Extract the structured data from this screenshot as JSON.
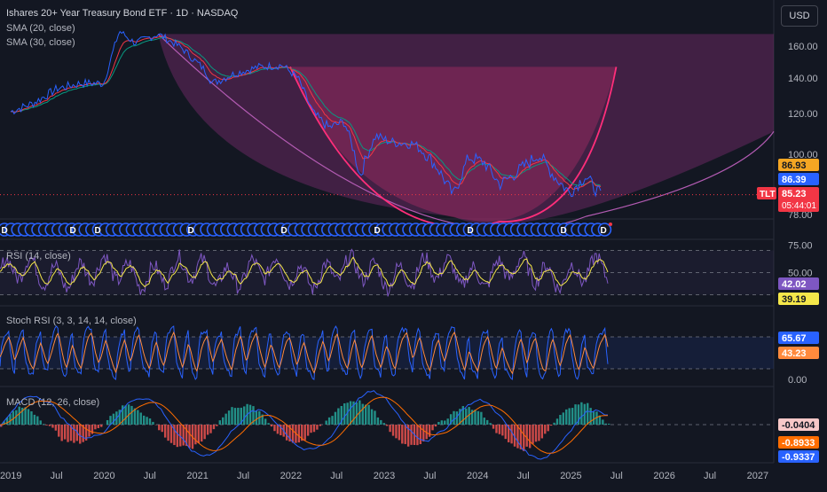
{
  "header": {
    "title": "Ishares 20+ Year Treasury Bond ETF · 1D · NASDAQ",
    "sma20": "SMA (20, close)",
    "sma30": "SMA (30, close)",
    "currency": "USD"
  },
  "colors": {
    "background": "#131722",
    "price": "#2962ff",
    "sma20": "#f23645",
    "sma30": "#089981",
    "cup_fill": "#7b2d6e",
    "handle_fill": "#9c2a5f",
    "handle_arc": "#ff2e7a",
    "rsi": "#7e57c2",
    "rsi_ma": "#f5e74a",
    "stoch_k": "#2962ff",
    "stoch_d": "#ff8a3d",
    "macd_line": "#2962ff",
    "macd_signal": "#ff6d00",
    "hist_pos": "#26a69a",
    "hist_neg": "#ef5350"
  },
  "chart_data": [
    {
      "type": "line",
      "panel": "price",
      "series": [
        {
          "name": "TLT",
          "x": [
            "2019-01",
            "2019-04",
            "2019-07",
            "2019-10",
            "2020-01",
            "2020-03",
            "2020-05",
            "2020-08",
            "2020-11",
            "2021-02",
            "2021-03",
            "2021-06",
            "2021-09",
            "2021-12",
            "2022-02",
            "2022-04",
            "2022-06",
            "2022-08",
            "2022-10",
            "2022-12",
            "2023-02",
            "2023-05",
            "2023-08",
            "2023-10",
            "2023-12",
            "2024-02",
            "2024-04",
            "2024-06",
            "2024-09",
            "2024-11",
            "2025-01",
            "2025-03",
            "2025-05"
          ],
          "values": [
            121,
            126,
            134,
            137,
            137,
            170,
            162,
            168,
            159,
            145,
            137,
            143,
            147,
            148,
            140,
            120,
            113,
            116,
            92,
            109,
            106,
            105,
            95,
            85,
            99,
            97,
            89,
            93,
            100,
            92,
            86,
            92,
            85
          ]
        }
      ],
      "value_tags": [
        {
          "label": "86.93",
          "value": 86.93,
          "color": "#f5a623"
        },
        {
          "label": "86.39",
          "value": 86.39,
          "color": "#2962ff"
        },
        {
          "label": "85.23",
          "value": 85.23,
          "color": "#f23645",
          "ticker": "TLT",
          "countdown": "05:44:01"
        }
      ],
      "y_ticks": [
        "160.00",
        "140.00",
        "120.00",
        "100.00",
        "78.00"
      ],
      "cup_pattern": {
        "outer_top": 168,
        "handle_top": 147,
        "bottom": 76
      }
    },
    {
      "type": "line",
      "panel": "rsi",
      "label": "RSI (14, close)",
      "ylim": [
        20,
        80
      ],
      "levels": [
        70,
        50,
        30
      ],
      "y_ticks": [
        "75.00",
        "50.00"
      ],
      "value_tags": [
        {
          "label": "42.02",
          "value": 42.02,
          "color": "#7e57c2"
        },
        {
          "label": "39.19",
          "value": 39.19,
          "color": "#f5e74a"
        }
      ]
    },
    {
      "type": "line",
      "panel": "stoch",
      "label": "Stoch RSI (3, 3, 14, 14, close)",
      "ylim": [
        0,
        100
      ],
      "levels": [
        80,
        20
      ],
      "y_ticks": [
        "0.00"
      ],
      "value_tags": [
        {
          "label": "65.67",
          "value": 65.67,
          "color": "#2962ff"
        },
        {
          "label": "43.23",
          "value": 43.23,
          "color": "#ff8a3d"
        }
      ]
    },
    {
      "type": "line",
      "panel": "macd",
      "label": "MACD (12, 26, close)",
      "value_tags": [
        {
          "label": "-0.0404",
          "value": -0.0404,
          "color": "#f8c8c8"
        },
        {
          "label": "-0.8933",
          "value": -0.8933,
          "color": "#ff6d00"
        },
        {
          "label": "-0.9337",
          "value": -0.9337,
          "color": "#2962ff"
        }
      ]
    }
  ],
  "x_axis": {
    "labels": [
      "2019",
      "Jul",
      "2020",
      "Jul",
      "2021",
      "Jul",
      "2022",
      "Jul",
      "2023",
      "Jul",
      "2024",
      "Jul",
      "2025",
      "Jul",
      "2026",
      "Jul",
      "2027"
    ]
  },
  "dividend_marker": "D"
}
